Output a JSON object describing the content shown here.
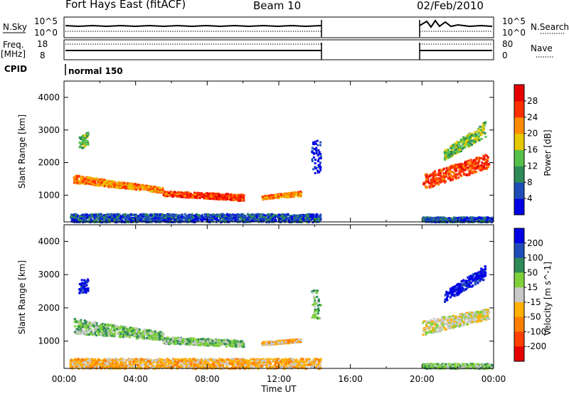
{
  "header": {
    "site": "Fort Hays East (fitACF)",
    "beam": "Beam 10",
    "date": "02/Feb/2010"
  },
  "noise_panel": {
    "left_label": "N.Sky",
    "right_label": "N.Search",
    "left_ticks": [
      "10^5",
      "10^0"
    ],
    "right_ticks": [
      "10^5",
      "10^0"
    ]
  },
  "freq_panel": {
    "left_label_1": "Freq.",
    "left_label_2": "[MHz]",
    "right_label": "Nave",
    "left_ticks": [
      "18",
      "8"
    ],
    "right_ticks": [
      "80",
      "0"
    ]
  },
  "cpid_panel": {
    "label": "CPID",
    "value": "normal 150"
  },
  "chart_data": [
    {
      "type": "heatmap",
      "name": "power",
      "ylabel": "Slant Range [km]",
      "ylim": [
        180,
        4500
      ],
      "yticks": [
        1000,
        2000,
        3000,
        4000
      ],
      "colorbar": {
        "label": "Power [dB]",
        "ticks": [
          4,
          8,
          12,
          16,
          20,
          24,
          28
        ],
        "colors": [
          "#0000e6",
          "#1e4db8",
          "#2e8b57",
          "#55c04a",
          "#e6c800",
          "#ff8c00",
          "#ff3000",
          "#e60000"
        ]
      },
      "bands": [
        {
          "x": [
            0.5,
            5.5
          ],
          "y0": [
            1400,
            1100
          ],
          "y1": [
            1650,
            1250
          ],
          "level": 5
        },
        {
          "x": [
            5.5,
            10.0
          ],
          "y0": [
            1000,
            850
          ],
          "y1": [
            1150,
            1050
          ],
          "level": 6
        },
        {
          "x": [
            11.0,
            13.2
          ],
          "y0": [
            900,
            1000
          ],
          "y1": [
            1000,
            1150
          ],
          "level": 5
        },
        {
          "x": [
            0.3,
            14.3
          ],
          "y0": [
            200,
            200
          ],
          "y1": [
            450,
            450
          ],
          "level": 1
        },
        {
          "x": [
            0.8,
            1.3
          ],
          "y0": [
            2450,
            2500
          ],
          "y1": [
            2850,
            2950
          ],
          "level": 3
        },
        {
          "x": [
            13.8,
            14.3
          ],
          "y0": [
            1700,
            1700
          ],
          "y1": [
            2700,
            2700
          ],
          "level": 0
        },
        {
          "x": [
            20.0,
            23.7
          ],
          "y0": [
            1200,
            1850
          ],
          "y1": [
            1650,
            2300
          ],
          "level": 6
        },
        {
          "x": [
            21.2,
            23.5
          ],
          "y0": [
            2100,
            2800
          ],
          "y1": [
            2400,
            3300
          ],
          "level": 3
        },
        {
          "x": [
            20.0,
            23.9
          ],
          "y0": [
            200,
            200
          ],
          "y1": [
            350,
            350
          ],
          "level": 1
        }
      ]
    },
    {
      "type": "heatmap",
      "name": "velocity",
      "ylabel": "Slant Range [km]",
      "ylim": [
        180,
        4500
      ],
      "yticks": [
        1000,
        2000,
        3000,
        4000
      ],
      "xlabel": "Time UT",
      "xticks": [
        "00:00",
        "04:00",
        "08:00",
        "12:00",
        "16:00",
        "20:00",
        "00:00"
      ],
      "xlim": [
        0,
        24
      ],
      "colorbar": {
        "label": "Velocity [m s^-1]",
        "ticks": [
          200,
          100,
          50,
          15,
          -15,
          -50,
          -100,
          -200
        ],
        "colors": [
          "#0000e6",
          "#1e4db8",
          "#2e8b57",
          "#7fd13b",
          "#c8c8c8",
          "#ffb000",
          "#ff7f00",
          "#ff4000",
          "#e60000"
        ]
      },
      "bands": [
        {
          "x": [
            0.5,
            5.5
          ],
          "y0": [
            1250,
            1050
          ],
          "y1": [
            1700,
            1300
          ],
          "level": 3
        },
        {
          "x": [
            5.5,
            10.0
          ],
          "y0": [
            950,
            850
          ],
          "y1": [
            1150,
            1050
          ],
          "level": 3
        },
        {
          "x": [
            11.0,
            13.2
          ],
          "y0": [
            900,
            1000
          ],
          "y1": [
            1000,
            1100
          ],
          "level": 5
        },
        {
          "x": [
            0.3,
            14.3
          ],
          "y0": [
            200,
            200
          ],
          "y1": [
            500,
            500
          ],
          "level": 5
        },
        {
          "x": [
            0.8,
            1.3
          ],
          "y0": [
            2450,
            2500
          ],
          "y1": [
            2850,
            2950
          ],
          "level": 0
        },
        {
          "x": [
            13.8,
            14.3
          ],
          "y0": [
            1700,
            1700
          ],
          "y1": [
            2600,
            2600
          ],
          "level": 3
        },
        {
          "x": [
            20.0,
            23.7
          ],
          "y0": [
            1200,
            1700
          ],
          "y1": [
            1650,
            2000
          ],
          "level": 4
        },
        {
          "x": [
            21.2,
            23.5
          ],
          "y0": [
            2200,
            2900
          ],
          "y1": [
            2500,
            3300
          ],
          "level": 0
        },
        {
          "x": [
            20.0,
            23.9
          ],
          "y0": [
            200,
            200
          ],
          "y1": [
            350,
            350
          ],
          "level": 3
        }
      ]
    }
  ]
}
